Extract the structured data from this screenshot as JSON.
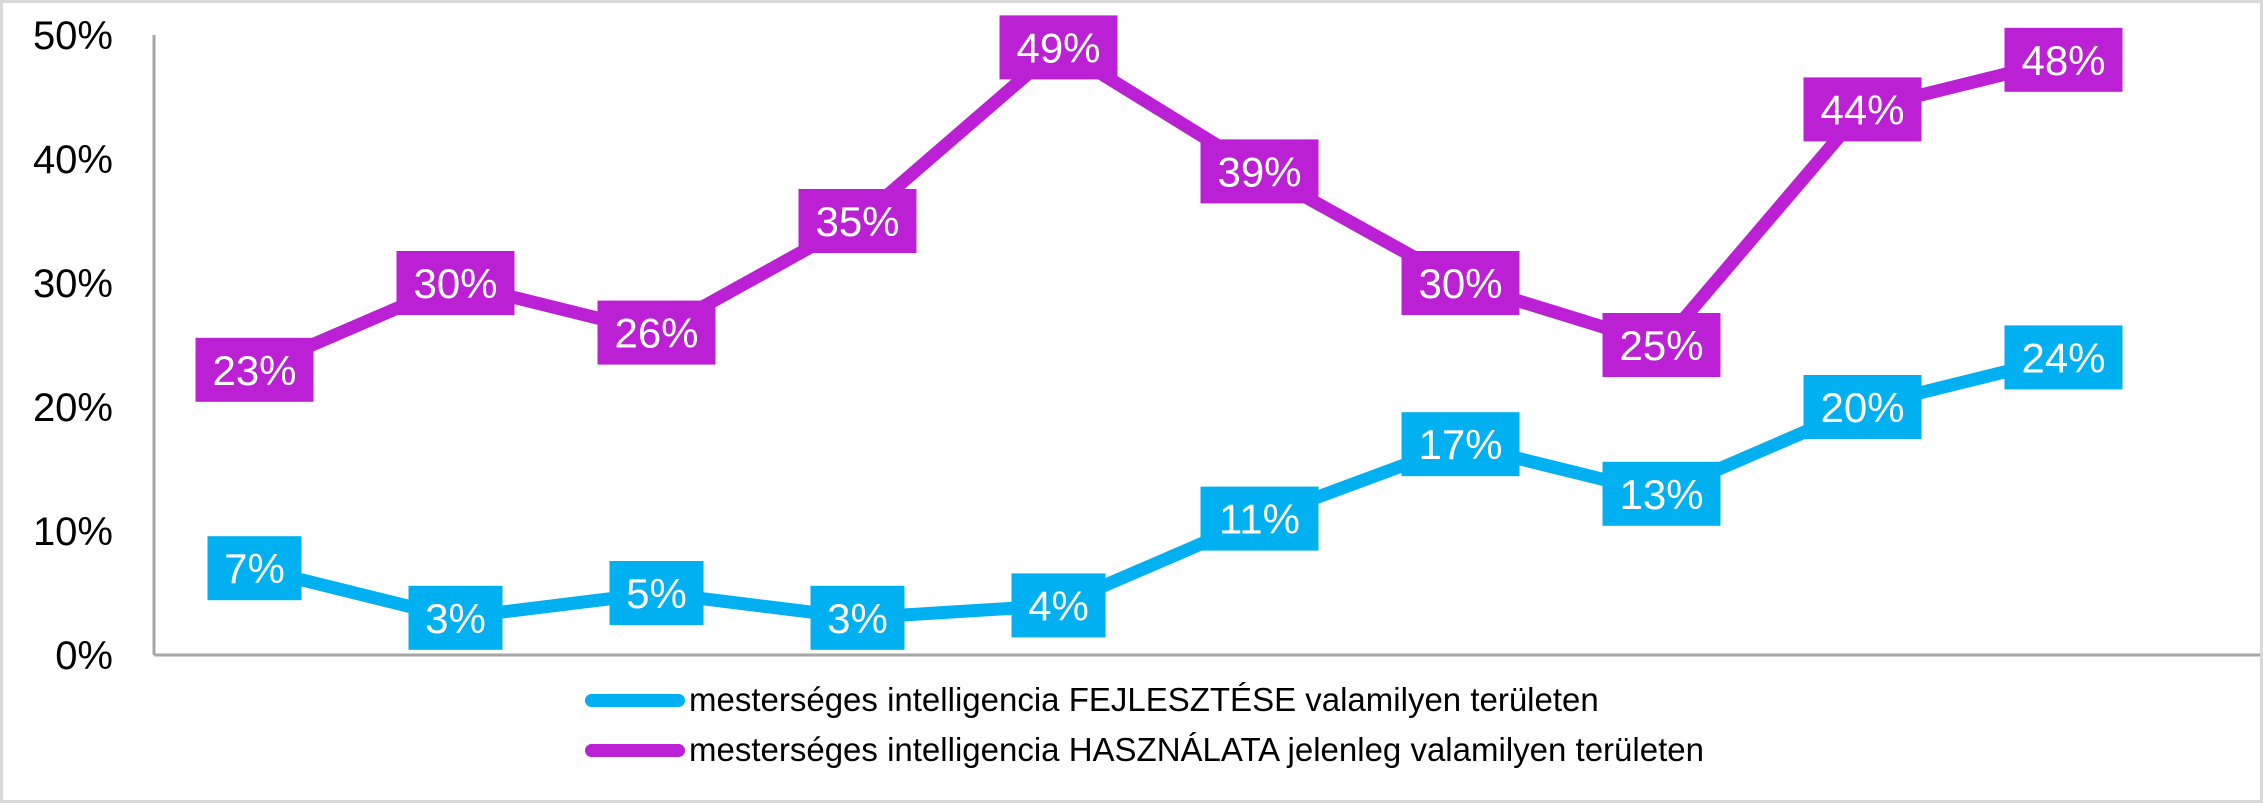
{
  "chart_data": {
    "type": "line",
    "title": "",
    "xlabel": "",
    "ylabel": "",
    "categories": [
      "",
      "",
      "",
      "",
      "",
      "",
      "",
      "",
      "",
      ""
    ],
    "ylim": [
      0,
      50
    ],
    "yticks": [
      "0%",
      "10%",
      "20%",
      "30%",
      "40%",
      "50%"
    ],
    "grid": false,
    "legend_position": "bottom",
    "series": [
      {
        "name": "mesterséges intelligencia FEJLESZTÉSE valamilyen területen",
        "color": "#00b0f0",
        "values": [
          7,
          3,
          5,
          3,
          4,
          11,
          17,
          13,
          20,
          24
        ],
        "labels": [
          "7%",
          "3%",
          "5%",
          "3%",
          "4%",
          "11%",
          "17%",
          "13%",
          "20%",
          "24%"
        ]
      },
      {
        "name": "mesterséges intelligencia HASZNÁLATA jelenleg valamilyen területen",
        "color": "#bb20d4",
        "values": [
          23,
          30,
          26,
          35,
          49,
          39,
          30,
          25,
          44,
          48
        ],
        "labels": [
          "23%",
          "30%",
          "26%",
          "35%",
          "49%",
          "39%",
          "30%",
          "25%",
          "44%",
          "48%"
        ]
      }
    ]
  }
}
